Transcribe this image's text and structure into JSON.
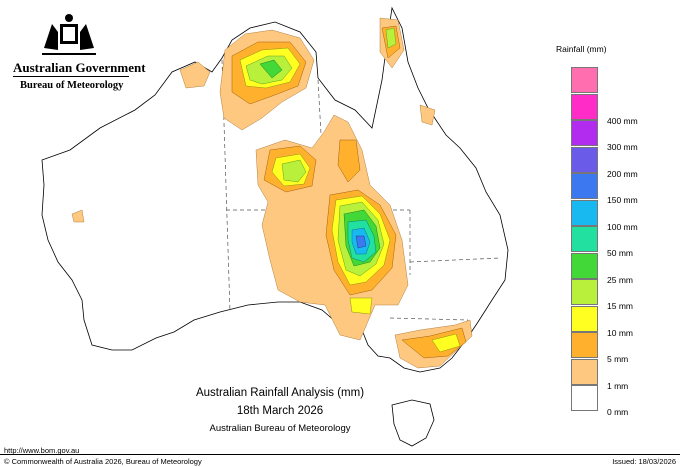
{
  "header": {
    "agency": "Australian Government",
    "bureau": "Bureau of Meteorology",
    "logo": "commonwealth-coat-of-arms"
  },
  "legend": {
    "title": "Rainfall (mm)",
    "items": [
      {
        "label": "",
        "color": "#ff6fb0"
      },
      {
        "label": "400 mm",
        "color": "#ff2cc8"
      },
      {
        "label": "300 mm",
        "color": "#b22cf0"
      },
      {
        "label": "200 mm",
        "color": "#6a5ce8"
      },
      {
        "label": "150 mm",
        "color": "#3c78f0"
      },
      {
        "label": "100 mm",
        "color": "#18b8f0"
      },
      {
        "label": "50 mm",
        "color": "#22e0a0"
      },
      {
        "label": "25 mm",
        "color": "#42d838"
      },
      {
        "label": "15 mm",
        "color": "#b8f03c"
      },
      {
        "label": "10 mm",
        "color": "#ffff22"
      },
      {
        "label": "5 mm",
        "color": "#ffb02c"
      },
      {
        "label": "1 mm",
        "color": "#ffc880"
      },
      {
        "label": "0 mm",
        "color": "#ffffff"
      }
    ]
  },
  "map": {
    "outline_color": "#000000",
    "border_color": "#555555"
  },
  "caption": {
    "title": "Australian Rainfall Analysis (mm)",
    "date": "18th March 2026",
    "agency": "Australian Bureau of Meteorology"
  },
  "footer": {
    "url": "http://www.bom.gov.au",
    "copyright": "© Commonwealth of Australia 2026, Bureau of Meteorology",
    "issued": "Issued: 18/03/2026"
  }
}
